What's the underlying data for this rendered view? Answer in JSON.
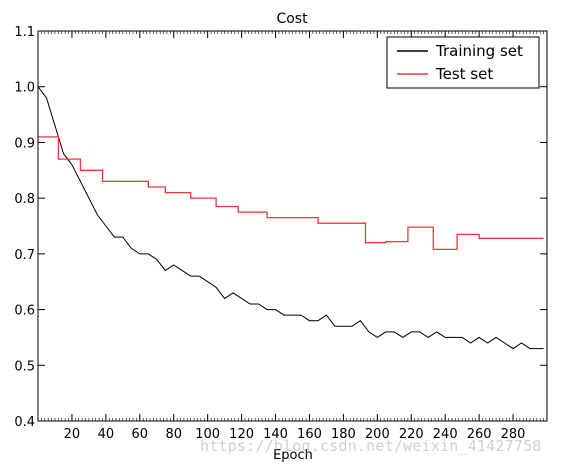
{
  "chart_data": {
    "type": "line",
    "title": "Cost",
    "xlabel": "Epoch",
    "ylabel": "",
    "xlim": [
      0,
      300
    ],
    "ylim": [
      0.4,
      1.1
    ],
    "x_ticks": [
      20,
      40,
      60,
      80,
      100,
      120,
      140,
      160,
      180,
      200,
      220,
      240,
      260,
      280
    ],
    "y_ticks": [
      "0.4",
      "0.5",
      "0.6",
      "0.7",
      "0.8",
      "0.9",
      "1.0",
      "1.1"
    ],
    "legend_position": "top-right",
    "grid": false,
    "series": [
      {
        "name": "Training set",
        "color": "#000000",
        "x": [
          0,
          5,
          10,
          15,
          20,
          25,
          30,
          35,
          40,
          45,
          50,
          55,
          60,
          65,
          70,
          75,
          80,
          85,
          90,
          95,
          100,
          105,
          110,
          115,
          120,
          125,
          130,
          135,
          140,
          145,
          150,
          155,
          160,
          165,
          170,
          175,
          180,
          185,
          190,
          195,
          200,
          205,
          210,
          215,
          220,
          225,
          230,
          235,
          240,
          245,
          250,
          255,
          260,
          265,
          270,
          275,
          280,
          285,
          290,
          295,
          298
        ],
        "values": [
          1.0,
          0.98,
          0.93,
          0.88,
          0.86,
          0.83,
          0.8,
          0.77,
          0.75,
          0.73,
          0.73,
          0.71,
          0.7,
          0.7,
          0.69,
          0.67,
          0.68,
          0.67,
          0.66,
          0.66,
          0.65,
          0.64,
          0.62,
          0.63,
          0.62,
          0.61,
          0.61,
          0.6,
          0.6,
          0.59,
          0.59,
          0.59,
          0.58,
          0.58,
          0.59,
          0.57,
          0.57,
          0.57,
          0.58,
          0.56,
          0.55,
          0.56,
          0.56,
          0.55,
          0.56,
          0.56,
          0.55,
          0.56,
          0.55,
          0.55,
          0.55,
          0.54,
          0.55,
          0.54,
          0.55,
          0.54,
          0.53,
          0.54,
          0.53,
          0.53,
          0.53
        ]
      },
      {
        "name": "Test set",
        "color": "#e8383b",
        "x": [
          0,
          12,
          12,
          25,
          25,
          38,
          38,
          50,
          50,
          65,
          65,
          75,
          75,
          90,
          90,
          105,
          105,
          118,
          118,
          135,
          135,
          165,
          165,
          193,
          193,
          205,
          205,
          218,
          218,
          233,
          233,
          247,
          247,
          260,
          260,
          298
        ],
        "values": [
          0.91,
          0.91,
          0.87,
          0.87,
          0.85,
          0.85,
          0.83,
          0.83,
          0.83,
          0.83,
          0.82,
          0.82,
          0.81,
          0.81,
          0.8,
          0.8,
          0.785,
          0.785,
          0.775,
          0.775,
          0.765,
          0.765,
          0.755,
          0.755,
          0.72,
          0.72,
          0.722,
          0.722,
          0.748,
          0.748,
          0.708,
          0.708,
          0.735,
          0.735,
          0.728,
          0.728
        ]
      }
    ]
  },
  "watermark": "https://blog.csdn.net/weixin_41427758"
}
